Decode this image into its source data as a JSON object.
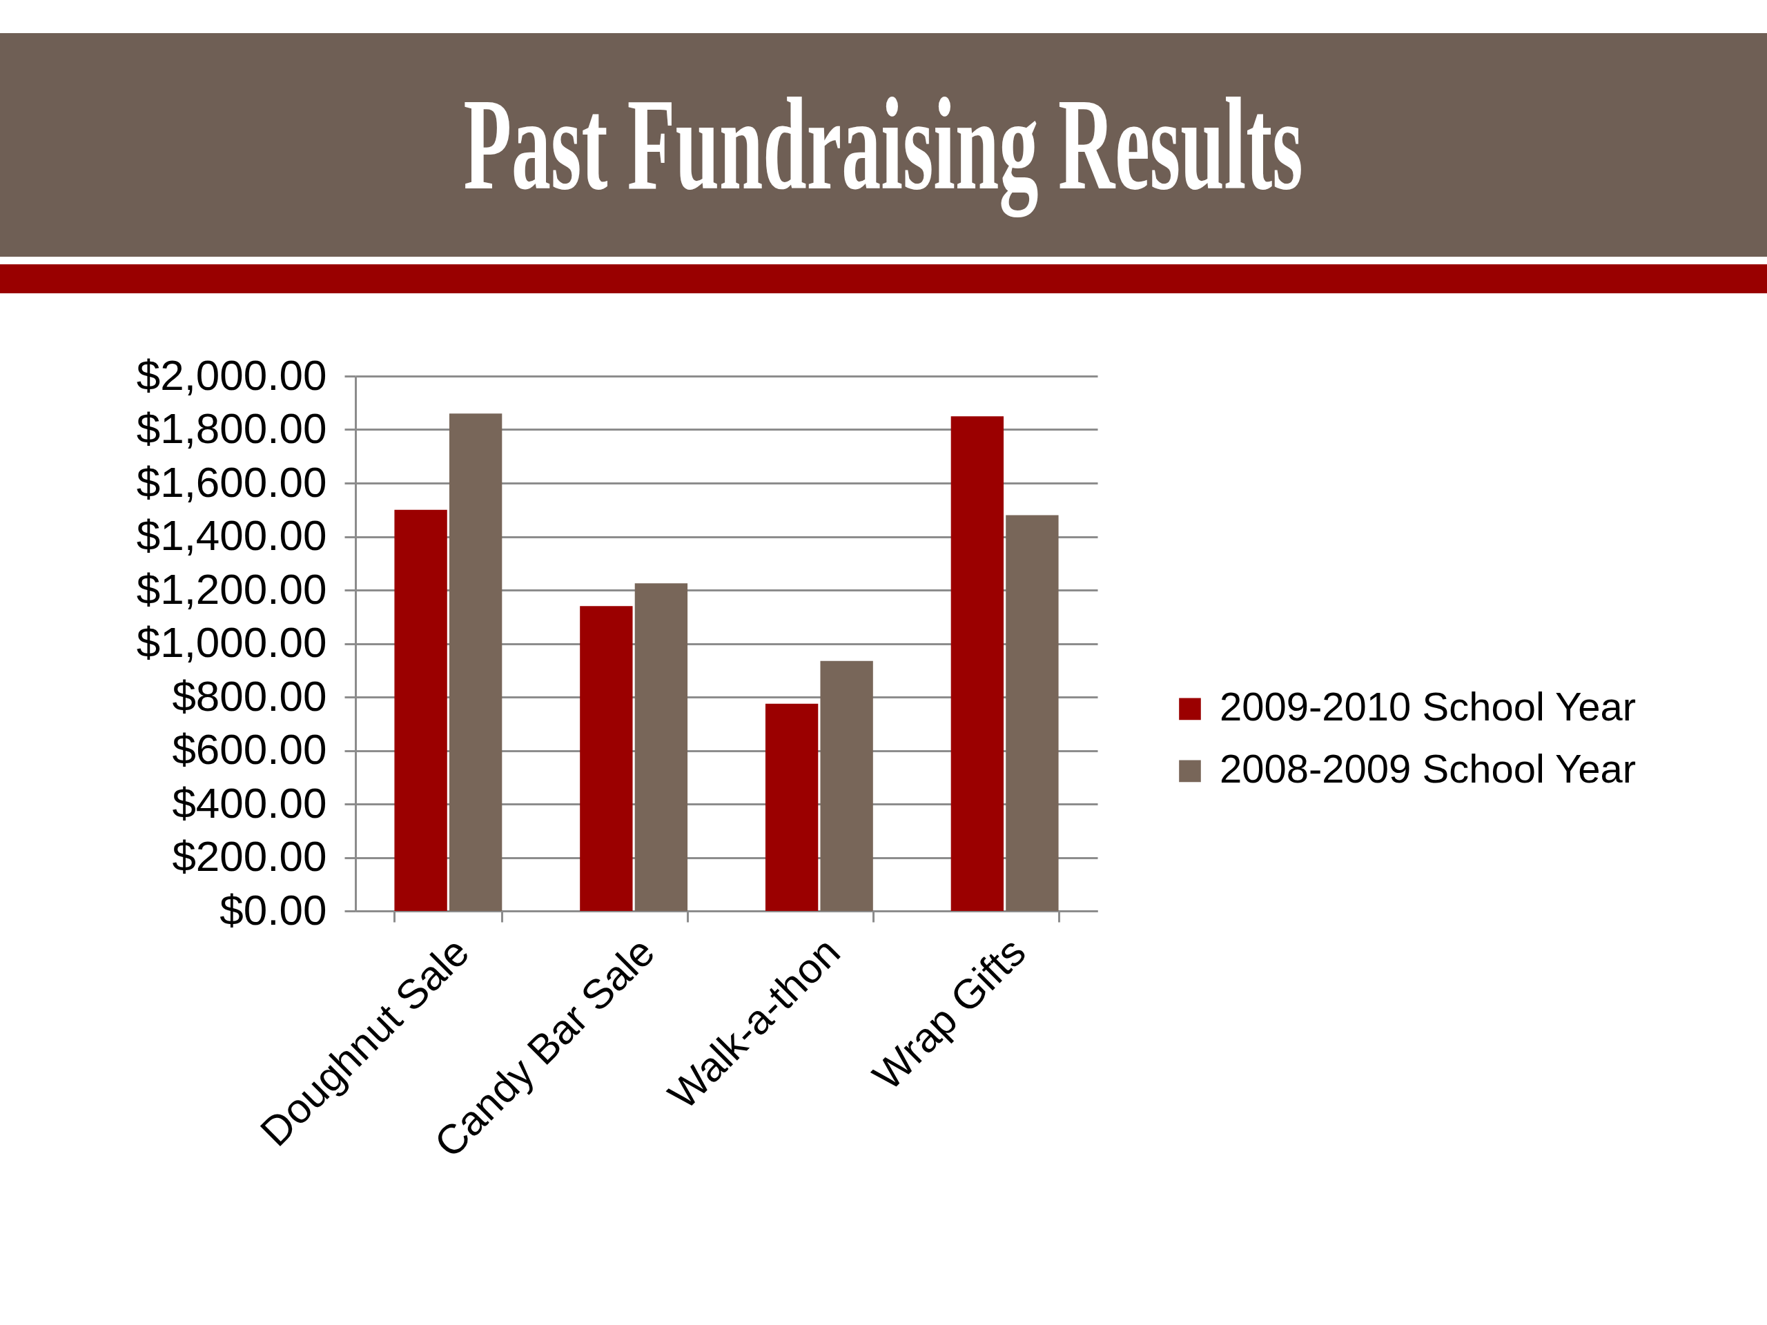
{
  "chart_data": {
    "type": "bar",
    "title": "Past Fundraising Results",
    "categories": [
      "Doughnut Sale",
      "Candy Bar Sale",
      "Walk-a-thon",
      "Wrap Gifts"
    ],
    "series": [
      {
        "name": "2009-2010 School Year",
        "color": "#9b0000",
        "values": [
          1500,
          1140,
          775,
          1850
        ]
      },
      {
        "name": "2008-2009 School Year",
        "color": "#786659",
        "values": [
          1860,
          1225,
          935,
          1480
        ]
      }
    ],
    "ylim": [
      0,
      2000
    ],
    "yticks": [
      {
        "value": 0,
        "label": "$0.00"
      },
      {
        "value": 200,
        "label": "$200.00"
      },
      {
        "value": 400,
        "label": "$400.00"
      },
      {
        "value": 600,
        "label": "$600.00"
      },
      {
        "value": 800,
        "label": "$800.00"
      },
      {
        "value": 1000,
        "label": "$1,000.00"
      },
      {
        "value": 1200,
        "label": "$1,200.00"
      },
      {
        "value": 1400,
        "label": "$1,400.00"
      },
      {
        "value": 1600,
        "label": "$1,600.00"
      },
      {
        "value": 1800,
        "label": "$1,800.00"
      },
      {
        "value": 2000,
        "label": "$2,000.00"
      }
    ],
    "grid": "y",
    "legend": "right"
  }
}
